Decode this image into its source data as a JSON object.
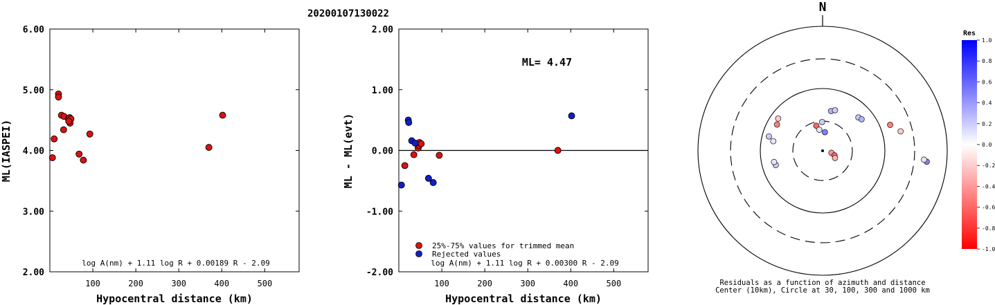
{
  "page_title": "20200107130022",
  "colors": {
    "red": "#dd1111",
    "blue": "#1020c8",
    "axis": "#000000"
  },
  "chart_data": [
    {
      "id": "left",
      "type": "scatter",
      "xlabel": "Hypocentral distance (km)",
      "ylabel": "ML(IASPEI)",
      "xlim": [
        0,
        580
      ],
      "ylim": [
        2.0,
        6.0
      ],
      "x_ticks": [
        100,
        200,
        300,
        400,
        500
      ],
      "x_tick_labels": [
        "100",
        "200",
        "300",
        "400",
        "500"
      ],
      "y_ticks": [
        2.0,
        3.0,
        4.0,
        5.0,
        6.0
      ],
      "y_tick_labels": [
        "2.00",
        "3.00",
        "4.00",
        "5.00",
        "6.00"
      ],
      "formula": "log A(nm) + 1.11 log R + 0.00189 R - 2.09",
      "series": [
        {
          "color": "red",
          "points": [
            [
              6,
              3.88
            ],
            [
              10,
              4.19
            ],
            [
              20,
              4.93
            ],
            [
              20,
              4.88
            ],
            [
              27,
              4.58
            ],
            [
              33,
              4.56
            ],
            [
              32,
              4.34
            ],
            [
              43,
              4.52
            ],
            [
              46,
              4.54
            ],
            [
              49,
              4.52
            ],
            [
              47,
              4.45
            ],
            [
              44,
              4.48
            ],
            [
              68,
              3.94
            ],
            [
              78,
              3.84
            ],
            [
              93,
              4.27
            ],
            [
              370,
              4.05
            ],
            [
              402,
              4.58
            ]
          ]
        }
      ]
    },
    {
      "id": "middle",
      "type": "scatter",
      "xlabel": "Hypocentral distance (km)",
      "ylabel": "ML - ML(evt)",
      "xlim": [
        0,
        580
      ],
      "ylim": [
        -2.0,
        2.0
      ],
      "x_ticks": [
        100,
        200,
        300,
        400,
        500
      ],
      "x_tick_labels": [
        "100",
        "200",
        "300",
        "400",
        "500"
      ],
      "y_ticks": [
        -2.0,
        -1.0,
        0.0,
        1.0,
        2.0
      ],
      "y_tick_labels": [
        "-2.00",
        "-1.00",
        "0.00",
        "1.00",
        "2.00"
      ],
      "zero_line": 0.0,
      "annotation": "ML= 4.47",
      "formula": "log A(nm) + 1.11 log R + 0.00300 R - 2.09",
      "legend": [
        {
          "color": "red",
          "label": "25%-75% values for trimmed mean"
        },
        {
          "color": "blue",
          "label": "Rejected values"
        }
      ],
      "series": [
        {
          "color": "red",
          "points": [
            [
              14,
              -0.25
            ],
            [
              35,
              -0.07
            ],
            [
              45,
              0.04
            ],
            [
              47,
              0.08
            ],
            [
              48,
              0.13
            ],
            [
              52,
              0.11
            ],
            [
              94,
              -0.08
            ],
            [
              370,
              0.0
            ]
          ]
        },
        {
          "color": "blue",
          "points": [
            [
              6,
              -0.57
            ],
            [
              22,
              0.5
            ],
            [
              23,
              0.46
            ],
            [
              30,
              0.16
            ],
            [
              38,
              0.12
            ],
            [
              69,
              -0.46
            ],
            [
              80,
              -0.53
            ],
            [
              402,
              0.57
            ]
          ]
        }
      ]
    }
  ],
  "polar": {
    "north_label": "N",
    "caption_line1": "Residuals as a function of azimuth and distance",
    "caption_line2": "Center (10km), Circle at 30, 100, 300 and 1000 km",
    "rings": [
      {
        "km": 30,
        "style": "dashed"
      },
      {
        "km": 100,
        "style": "solid"
      },
      {
        "km": 300,
        "style": "dashed"
      },
      {
        "km": 1000,
        "style": "solid"
      }
    ],
    "stations": [
      {
        "az": 346,
        "dist": 26,
        "res": -0.6
      },
      {
        "az": 351,
        "dist": 22,
        "res": 0.1
      },
      {
        "az": 7,
        "dist": 20,
        "res": 0.5
      },
      {
        "az": 359,
        "dist": 29,
        "res": 0.2
      },
      {
        "az": 12,
        "dist": 45,
        "res": 0.3
      },
      {
        "az": 17,
        "dist": 48,
        "res": 0.2
      },
      {
        "az": 47,
        "dist": 61,
        "res": 0.2
      },
      {
        "az": 51,
        "dist": 64,
        "res": 0.3
      },
      {
        "az": 103,
        "dist": 14,
        "res": -0.4
      },
      {
        "az": 111,
        "dist": 16,
        "res": -0.6
      },
      {
        "az": 120,
        "dist": 17,
        "res": -0.3
      },
      {
        "az": 69,
        "dist": 145,
        "res": -0.5
      },
      {
        "az": 76,
        "dist": 195,
        "res": -0.2
      },
      {
        "az": 300,
        "dist": 70,
        "res": -0.5
      },
      {
        "az": 306,
        "dist": 76,
        "res": -0.2
      },
      {
        "az": 281,
        "dist": 64,
        "res": 0.1
      },
      {
        "az": 285,
        "dist": 78,
        "res": 0.2
      },
      {
        "az": 253,
        "dist": 61,
        "res": 0.2
      },
      {
        "az": 257,
        "dist": 63,
        "res": 0.1
      },
      {
        "az": 96,
        "dist": 480,
        "res": 0.5
      },
      {
        "az": 95,
        "dist": 430,
        "res": 0.1
      }
    ]
  },
  "colorbar": {
    "title": "Res",
    "min": -1.0,
    "max": 1.0,
    "tick_labels": [
      "1.0",
      "0.8",
      "0.6",
      "0.4",
      "0.2",
      "0.0",
      "-0.2",
      "-0.4",
      "-0.6",
      "-0.8",
      "-1.0"
    ],
    "tick_values": [
      1.0,
      0.8,
      0.6,
      0.4,
      0.2,
      0.0,
      -0.2,
      -0.4,
      -0.6,
      -0.8,
      -1.0
    ]
  }
}
